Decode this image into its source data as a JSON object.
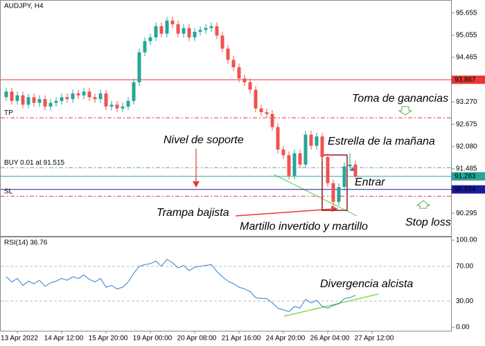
{
  "chart_data": {
    "type": "candlestick",
    "title": "AUDJPY, H4",
    "categories": [
      null,
      null,
      "13 Apr 2022",
      null,
      null,
      null,
      null,
      null,
      null,
      null,
      "14 Apr 12:00",
      null,
      null,
      null,
      null,
      null,
      null,
      null,
      "15 Apr 20:00",
      null,
      null,
      null,
      null,
      null,
      null,
      null,
      "19 Apr 00:00",
      null,
      null,
      null,
      null,
      null,
      null,
      null,
      "20 Apr 08:00",
      null,
      null,
      null,
      null,
      null,
      null,
      null,
      "21 Apr 16:00",
      null,
      null,
      null,
      null,
      null,
      null,
      null,
      "24 Apr 20:00",
      null,
      null,
      null,
      null,
      null,
      null,
      null,
      "26 Apr 04:00",
      null,
      null,
      null,
      null,
      null,
      null,
      null,
      "27 Apr 12:00",
      null
    ],
    "open": [
      93.4,
      93.55,
      93.3,
      93.45,
      93.2,
      93.4,
      93.25,
      93.35,
      93.15,
      93.25,
      93.3,
      93.4,
      93.35,
      93.5,
      93.45,
      93.55,
      93.4,
      93.35,
      93.5,
      93.15,
      93.2,
      93.1,
      93.15,
      93.3,
      93.8,
      94.6,
      94.9,
      95.0,
      95.3,
      95.1,
      95.45,
      95.35,
      95.1,
      95.25,
      95.0,
      95.15,
      95.2,
      95.25,
      95.3,
      95.05,
      94.7,
      94.4,
      94.2,
      93.9,
      93.8,
      93.6,
      93.1,
      93.0,
      92.95,
      92.6,
      92.0,
      91.85,
      91.3,
      91.9,
      91.6,
      92.4,
      92.1,
      92.35,
      91.8,
      91.1,
      90.6,
      91.0,
      91.55,
      91.6,
      null,
      null,
      null,
      null
    ],
    "high": [
      93.65,
      93.65,
      93.55,
      93.55,
      93.5,
      93.5,
      93.45,
      93.45,
      93.35,
      93.4,
      93.5,
      93.5,
      93.6,
      93.6,
      93.65,
      93.65,
      93.5,
      93.6,
      93.6,
      93.3,
      93.3,
      93.25,
      93.4,
      93.9,
      94.7,
      95.0,
      95.1,
      95.4,
      95.4,
      95.55,
      95.55,
      95.45,
      95.35,
      95.35,
      95.25,
      95.3,
      95.35,
      95.4,
      95.4,
      95.15,
      94.8,
      94.5,
      94.3,
      94.0,
      93.9,
      93.7,
      93.2,
      93.1,
      93.05,
      92.7,
      92.1,
      91.95,
      92.0,
      92.0,
      92.5,
      92.5,
      92.45,
      92.45,
      91.9,
      91.2,
      91.1,
      91.65,
      91.9,
      91.7,
      null,
      null,
      null,
      null
    ],
    "low": [
      93.3,
      93.2,
      93.2,
      93.1,
      93.1,
      93.15,
      93.15,
      93.05,
      93.05,
      93.15,
      93.2,
      93.25,
      93.25,
      93.35,
      93.35,
      93.3,
      93.25,
      93.25,
      93.05,
      93.05,
      93.0,
      93.0,
      93.05,
      93.2,
      93.7,
      94.5,
      94.8,
      94.9,
      95.0,
      95.0,
      95.25,
      95.0,
      95.0,
      94.9,
      94.9,
      95.05,
      95.1,
      95.15,
      94.95,
      94.6,
      94.3,
      94.1,
      93.8,
      93.7,
      93.5,
      93.0,
      92.9,
      92.85,
      92.5,
      91.9,
      91.75,
      91.2,
      91.2,
      91.5,
      91.5,
      92.0,
      92.0,
      91.7,
      91.0,
      90.4,
      90.5,
      90.9,
      91.45,
      91.2,
      null,
      null,
      null,
      null
    ],
    "close": [
      93.55,
      93.3,
      93.45,
      93.2,
      93.4,
      93.25,
      93.35,
      93.15,
      93.25,
      93.3,
      93.4,
      93.35,
      93.5,
      93.45,
      93.55,
      93.4,
      93.35,
      93.5,
      93.15,
      93.2,
      93.1,
      93.15,
      93.3,
      93.8,
      94.6,
      94.9,
      95.0,
      95.3,
      95.1,
      95.45,
      95.35,
      95.1,
      95.25,
      95.0,
      95.15,
      95.2,
      95.25,
      95.3,
      95.05,
      94.7,
      94.4,
      94.2,
      93.9,
      93.8,
      93.6,
      93.1,
      93.0,
      92.95,
      92.6,
      92.0,
      91.85,
      91.3,
      91.9,
      91.6,
      92.4,
      92.1,
      92.35,
      91.8,
      91.1,
      90.6,
      91.0,
      91.55,
      91.6,
      91.28,
      null,
      null,
      null,
      null
    ],
    "up_color": "#26a69a",
    "down_color": "#ef5350",
    "ylim": [
      89.67,
      96.0
    ],
    "yticks": [
      95.655,
      95.055,
      94.465,
      {
        "value": 93.27,
        "label": "93.270"
      },
      92.675,
      {
        "value": 92.08,
        "label": "92.080"
      },
      91.485,
      90.295
    ],
    "levels": [
      {
        "value": 93.867,
        "color": "#e53935",
        "style": "solid",
        "tag": true
      },
      {
        "value": 92.85,
        "label": "TP",
        "color": "#e53935",
        "style": "dashed"
      },
      {
        "value": 91.515,
        "label": "BUY 0.01 at 91.515",
        "color": "#7a9aa5",
        "style": "dashed"
      },
      {
        "value": 91.283,
        "color": "#26a69a",
        "style": "solid",
        "tag": true
      },
      {
        "value": 90.934,
        "color": "#1a1aa0",
        "style": "solid",
        "tag": true
      },
      {
        "value": 90.75,
        "label": "SL",
        "color": "#e53935",
        "style": "dashed"
      }
    ],
    "annotations": [
      "Toma de ganancias",
      "Nivel de soporte",
      "Estrella de la mañana",
      "Entrar",
      "Trampa bajista",
      "Martillo invertido y martillo",
      "Stop loss",
      "Divergencia alcista"
    ],
    "indicator": {
      "title": "RSI(14) 36.76",
      "color": "#2f7fd0",
      "values": [
        58,
        52,
        56,
        48,
        53,
        50,
        54,
        47,
        51,
        53,
        56,
        54,
        58,
        56,
        60,
        55,
        52,
        56,
        46,
        48,
        44,
        46,
        52,
        62,
        70,
        72,
        73,
        76,
        70,
        78,
        74,
        68,
        71,
        65,
        69,
        70,
        71,
        72,
        64,
        58,
        53,
        50,
        46,
        44,
        41,
        34,
        33,
        33,
        28,
        22,
        20,
        18,
        24,
        22,
        32,
        28,
        31,
        24,
        22,
        25,
        27,
        33,
        34,
        36.76,
        null,
        null,
        null,
        null
      ],
      "ylim": [
        -4,
        104
      ],
      "yticks": [
        {
          "value": 100,
          "label": "100.00"
        },
        {
          "value": 70,
          "label": "70.00"
        },
        {
          "value": 30,
          "label": "30.00"
        },
        {
          "value": 0,
          "label": "0.00"
        }
      ]
    }
  }
}
